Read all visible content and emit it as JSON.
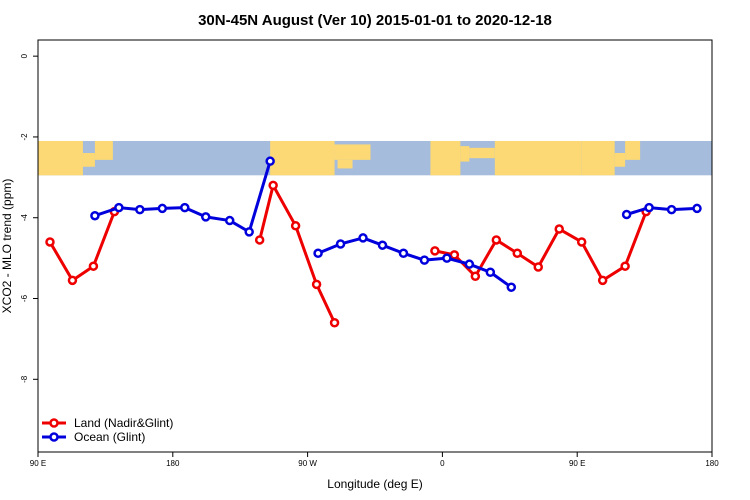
{
  "chart_data": {
    "type": "line",
    "title": "30N-45N August (Ver 10)   2015-01-01 to 2020-12-18",
    "xlabel": "Longitude (deg E)",
    "ylabel": "XCO2 - MLO trend (ppm)",
    "xlim": [
      90,
      540
    ],
    "ylim": [
      -9.8,
      0.4
    ],
    "x_ticks": [
      {
        "value": 90,
        "label": "90 E"
      },
      {
        "value": 180,
        "label": "180"
      },
      {
        "value": 270,
        "label": "90 W"
      },
      {
        "value": 360,
        "label": "0"
      },
      {
        "value": 450,
        "label": "90 E"
      },
      {
        "value": 540,
        "label": "180"
      }
    ],
    "y_ticks": [
      {
        "value": 0,
        "label": "0"
      },
      {
        "value": -2,
        "label": "-2"
      },
      {
        "value": -4,
        "label": "-4"
      },
      {
        "value": -6,
        "label": "-6"
      },
      {
        "value": -8,
        "label": "-8"
      }
    ],
    "map_band": {
      "y_top": -2.1,
      "y_bottom": -2.95,
      "land_color": "#FCD974",
      "ocean_color": "#A6BCDC"
    },
    "legend_position": "bottom-left",
    "series": [
      {
        "name": "Land (Nadir&Glint)",
        "color": "#EE0000",
        "segments": [
          [
            [
              98,
              -4.6
            ],
            [
              113,
              -5.55
            ],
            [
              127,
              -5.2
            ],
            [
              141,
              -3.85
            ]
          ],
          [
            [
              238,
              -4.55
            ],
            [
              247,
              -3.2
            ],
            [
              262,
              -4.2
            ],
            [
              276,
              -5.65
            ],
            [
              288,
              -6.6
            ]
          ],
          [
            [
              355,
              -4.82
            ],
            [
              368,
              -4.92
            ],
            [
              382,
              -5.45
            ],
            [
              396,
              -4.55
            ],
            [
              410,
              -4.88
            ],
            [
              424,
              -5.22
            ],
            [
              438,
              -4.28
            ],
            [
              453,
              -4.6
            ],
            [
              467,
              -5.55
            ],
            [
              482,
              -5.2
            ],
            [
              496,
              -3.85
            ]
          ]
        ]
      },
      {
        "name": "Ocean (Glint)",
        "color": "#0000DD",
        "segments": [
          [
            [
              128,
              -3.95
            ],
            [
              144,
              -3.75
            ],
            [
              158,
              -3.8
            ],
            [
              173,
              -3.77
            ],
            [
              188,
              -3.75
            ],
            [
              202,
              -3.98
            ],
            [
              218,
              -4.07
            ],
            [
              231,
              -4.35
            ],
            [
              245,
              -2.6
            ]
          ],
          [
            [
              277,
              -4.88
            ],
            [
              292,
              -4.65
            ],
            [
              307,
              -4.5
            ],
            [
              320,
              -4.68
            ],
            [
              334,
              -4.88
            ],
            [
              348,
              -5.05
            ],
            [
              363,
              -5.0
            ],
            [
              378,
              -5.15
            ],
            [
              392,
              -5.35
            ],
            [
              406,
              -5.72
            ]
          ],
          [
            [
              483,
              -3.92
            ],
            [
              498,
              -3.75
            ],
            [
              513,
              -3.8
            ],
            [
              530,
              -3.77
            ]
          ]
        ]
      }
    ]
  }
}
